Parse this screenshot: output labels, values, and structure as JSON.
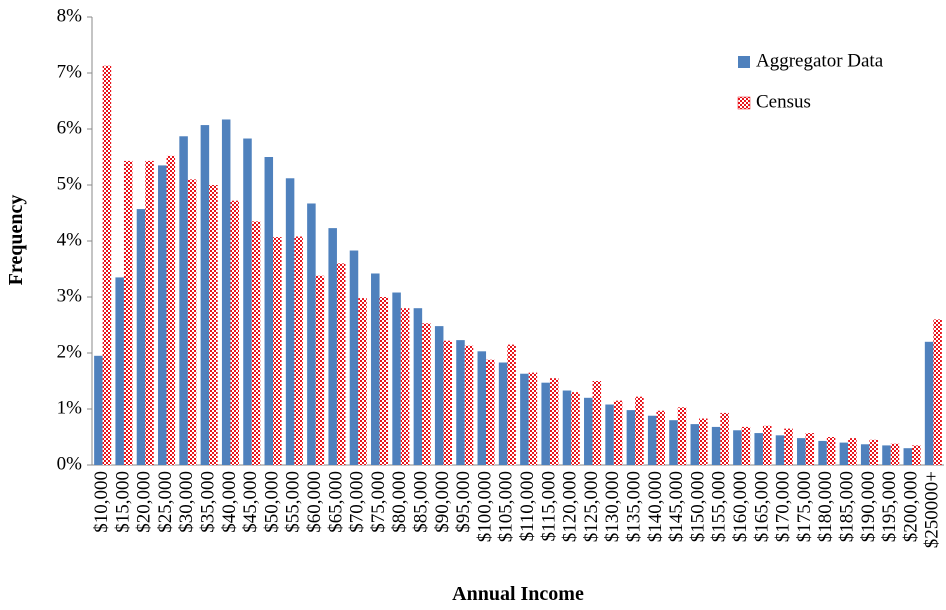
{
  "chart_data": {
    "type": "bar",
    "x_label": "Annual Income",
    "y_label": "Frequency",
    "categories": [
      "$10,000",
      "$15,000",
      "$20,000",
      "$25,000",
      "$30,000",
      "$35,000",
      "$40,000",
      "$45,000",
      "$50,000",
      "$55,000",
      "$60,000",
      "$65,000",
      "$70,000",
      "$75,000",
      "$80,000",
      "$85,000",
      "$90,000",
      "$95,000",
      "$100,000",
      "$105,000",
      "$110,000",
      "$115,000",
      "$120,000",
      "$125,000",
      "$130,000",
      "$135,000",
      "$140,000",
      "$145,000",
      "$150,000",
      "$155,000",
      "$160,000",
      "$165,000",
      "$170,000",
      "$175,000",
      "$180,000",
      "$185,000",
      "$190,000",
      "$195,000",
      "$200,000",
      "$250000+"
    ],
    "series": [
      {
        "name": "Aggregator Data",
        "color": "#4f81bd",
        "pattern": "solid",
        "values": [
          1.95,
          3.35,
          4.57,
          5.35,
          5.87,
          6.07,
          6.17,
          5.83,
          5.5,
          5.12,
          4.67,
          4.23,
          3.83,
          3.42,
          3.08,
          2.8,
          2.48,
          2.23,
          2.03,
          1.83,
          1.63,
          1.47,
          1.33,
          1.2,
          1.08,
          0.98,
          0.88,
          0.8,
          0.73,
          0.68,
          0.62,
          0.57,
          0.53,
          0.48,
          0.43,
          0.4,
          0.37,
          0.35,
          0.3,
          2.2
        ]
      },
      {
        "name": "Census",
        "color": "#e8141c",
        "pattern": "checker",
        "values": [
          7.13,
          5.43,
          5.43,
          5.52,
          5.1,
          5.0,
          4.72,
          4.35,
          4.07,
          4.08,
          3.38,
          3.6,
          2.98,
          3.0,
          2.8,
          2.53,
          2.22,
          2.13,
          1.88,
          2.15,
          1.65,
          1.55,
          1.3,
          1.5,
          1.15,
          1.22,
          0.97,
          1.03,
          0.83,
          0.93,
          0.68,
          0.7,
          0.65,
          0.57,
          0.5,
          0.48,
          0.45,
          0.38,
          0.35,
          2.6
        ]
      }
    ],
    "ylim": [
      0,
      8
    ],
    "yticks": [
      {
        "value": 0,
        "label": "0%"
      },
      {
        "value": 1,
        "label": "1%"
      },
      {
        "value": 2,
        "label": "2%"
      },
      {
        "value": 3,
        "label": "3%"
      },
      {
        "value": 4,
        "label": "4%"
      },
      {
        "value": 5,
        "label": "5%"
      },
      {
        "value": 6,
        "label": "6%"
      },
      {
        "value": 7,
        "label": "7%"
      },
      {
        "value": 8,
        "label": "8%"
      }
    ],
    "grid": false,
    "legend": "upper right"
  }
}
